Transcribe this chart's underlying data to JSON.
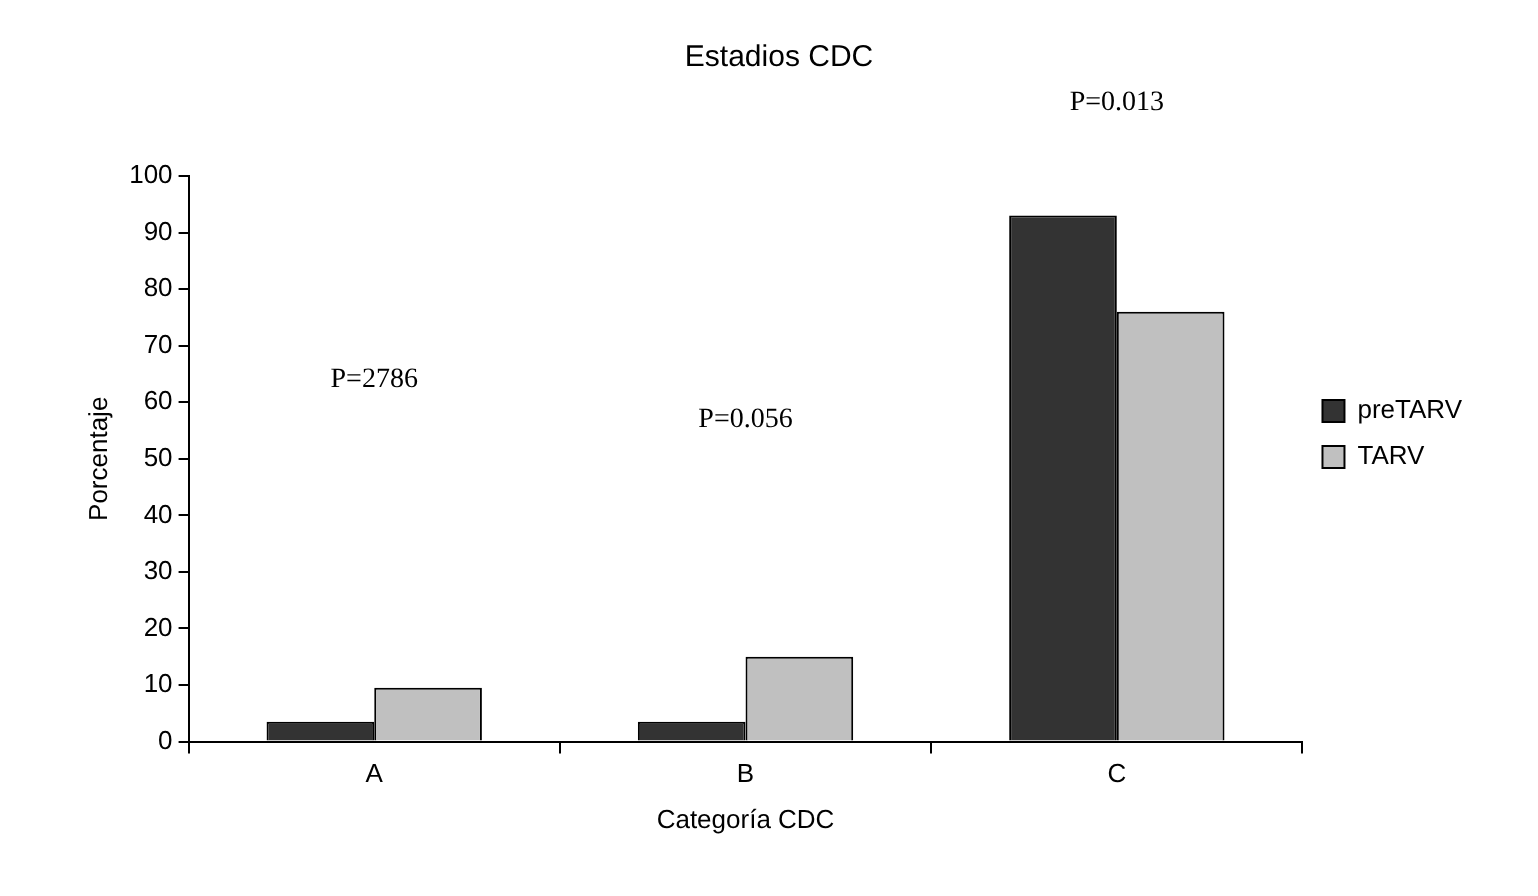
{
  "chart_data": {
    "type": "bar",
    "title": "Estadios CDC",
    "xlabel": "Categoría CDC",
    "ylabel": "Porcentaje",
    "categories": [
      "A",
      "B",
      "C"
    ],
    "series": [
      {
        "name": "preTARV",
        "color": "#333333",
        "values": [
          3.5,
          3.5,
          93
        ]
      },
      {
        "name": "TARV",
        "color": "#c0c0c0",
        "values": [
          9.5,
          15,
          76
        ]
      }
    ],
    "ylim": [
      0,
      100
    ],
    "yticks": [
      0,
      10,
      20,
      30,
      40,
      50,
      60,
      70,
      80,
      90,
      100
    ],
    "grid": false,
    "legend": "right",
    "annotations": [
      "P=2786",
      "P=0.056",
      "P=0.013"
    ]
  }
}
